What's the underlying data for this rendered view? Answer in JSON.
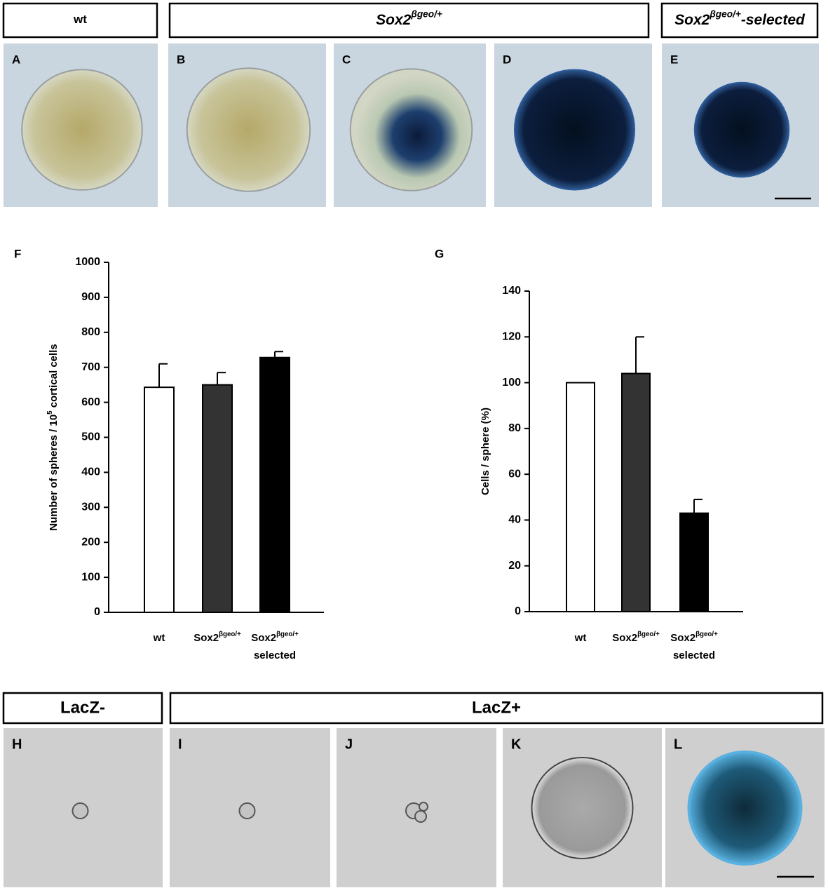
{
  "top_headers": [
    {
      "text": "wt"
    },
    {
      "base": "Sox2",
      "sup": "βgeo/+"
    },
    {
      "base": "Sox2",
      "sup": "βgeo/+",
      "suffix": "-selected"
    }
  ],
  "top_panels": [
    "A",
    "B",
    "C",
    "D",
    "E"
  ],
  "bottom_headers": [
    "LacZ-",
    "LacZ+"
  ],
  "bottom_panels": [
    "H",
    "I",
    "J",
    "K",
    "L"
  ],
  "chart_data": [
    {
      "type": "bar",
      "panel": "F",
      "y_label": {
        "text": "Number of spheres / 10",
        "sup": "5",
        "suffix": " cortical cells"
      },
      "categories": [
        {
          "text": "wt"
        },
        {
          "base": "Sox2",
          "sup": "βgeo/+"
        },
        {
          "base": "Sox2",
          "sup": "βgeo/+",
          "line2": "selected"
        }
      ],
      "values": [
        643,
        650,
        728
      ],
      "errors": [
        67,
        35,
        17
      ],
      "colors": [
        "#ffffff",
        "#333333",
        "#000000"
      ],
      "ylim": [
        0,
        1000
      ],
      "yticks": [
        0,
        100,
        200,
        300,
        400,
        500,
        600,
        700,
        800,
        900,
        1000
      ]
    },
    {
      "type": "bar",
      "panel": "G",
      "y_label": {
        "text": "Cells / sphere (%)"
      },
      "categories": [
        {
          "text": "wt"
        },
        {
          "base": "Sox2",
          "sup": "βgeo/+"
        },
        {
          "base": "Sox2",
          "sup": "βgeo/+",
          "line2": "selected"
        }
      ],
      "values": [
        100,
        104,
        43
      ],
      "errors": [
        0,
        16,
        6
      ],
      "colors": [
        "#ffffff",
        "#333333",
        "#000000"
      ],
      "ylim": [
        0,
        140
      ],
      "yticks": [
        0,
        20,
        40,
        60,
        80,
        100,
        120,
        140
      ]
    }
  ]
}
